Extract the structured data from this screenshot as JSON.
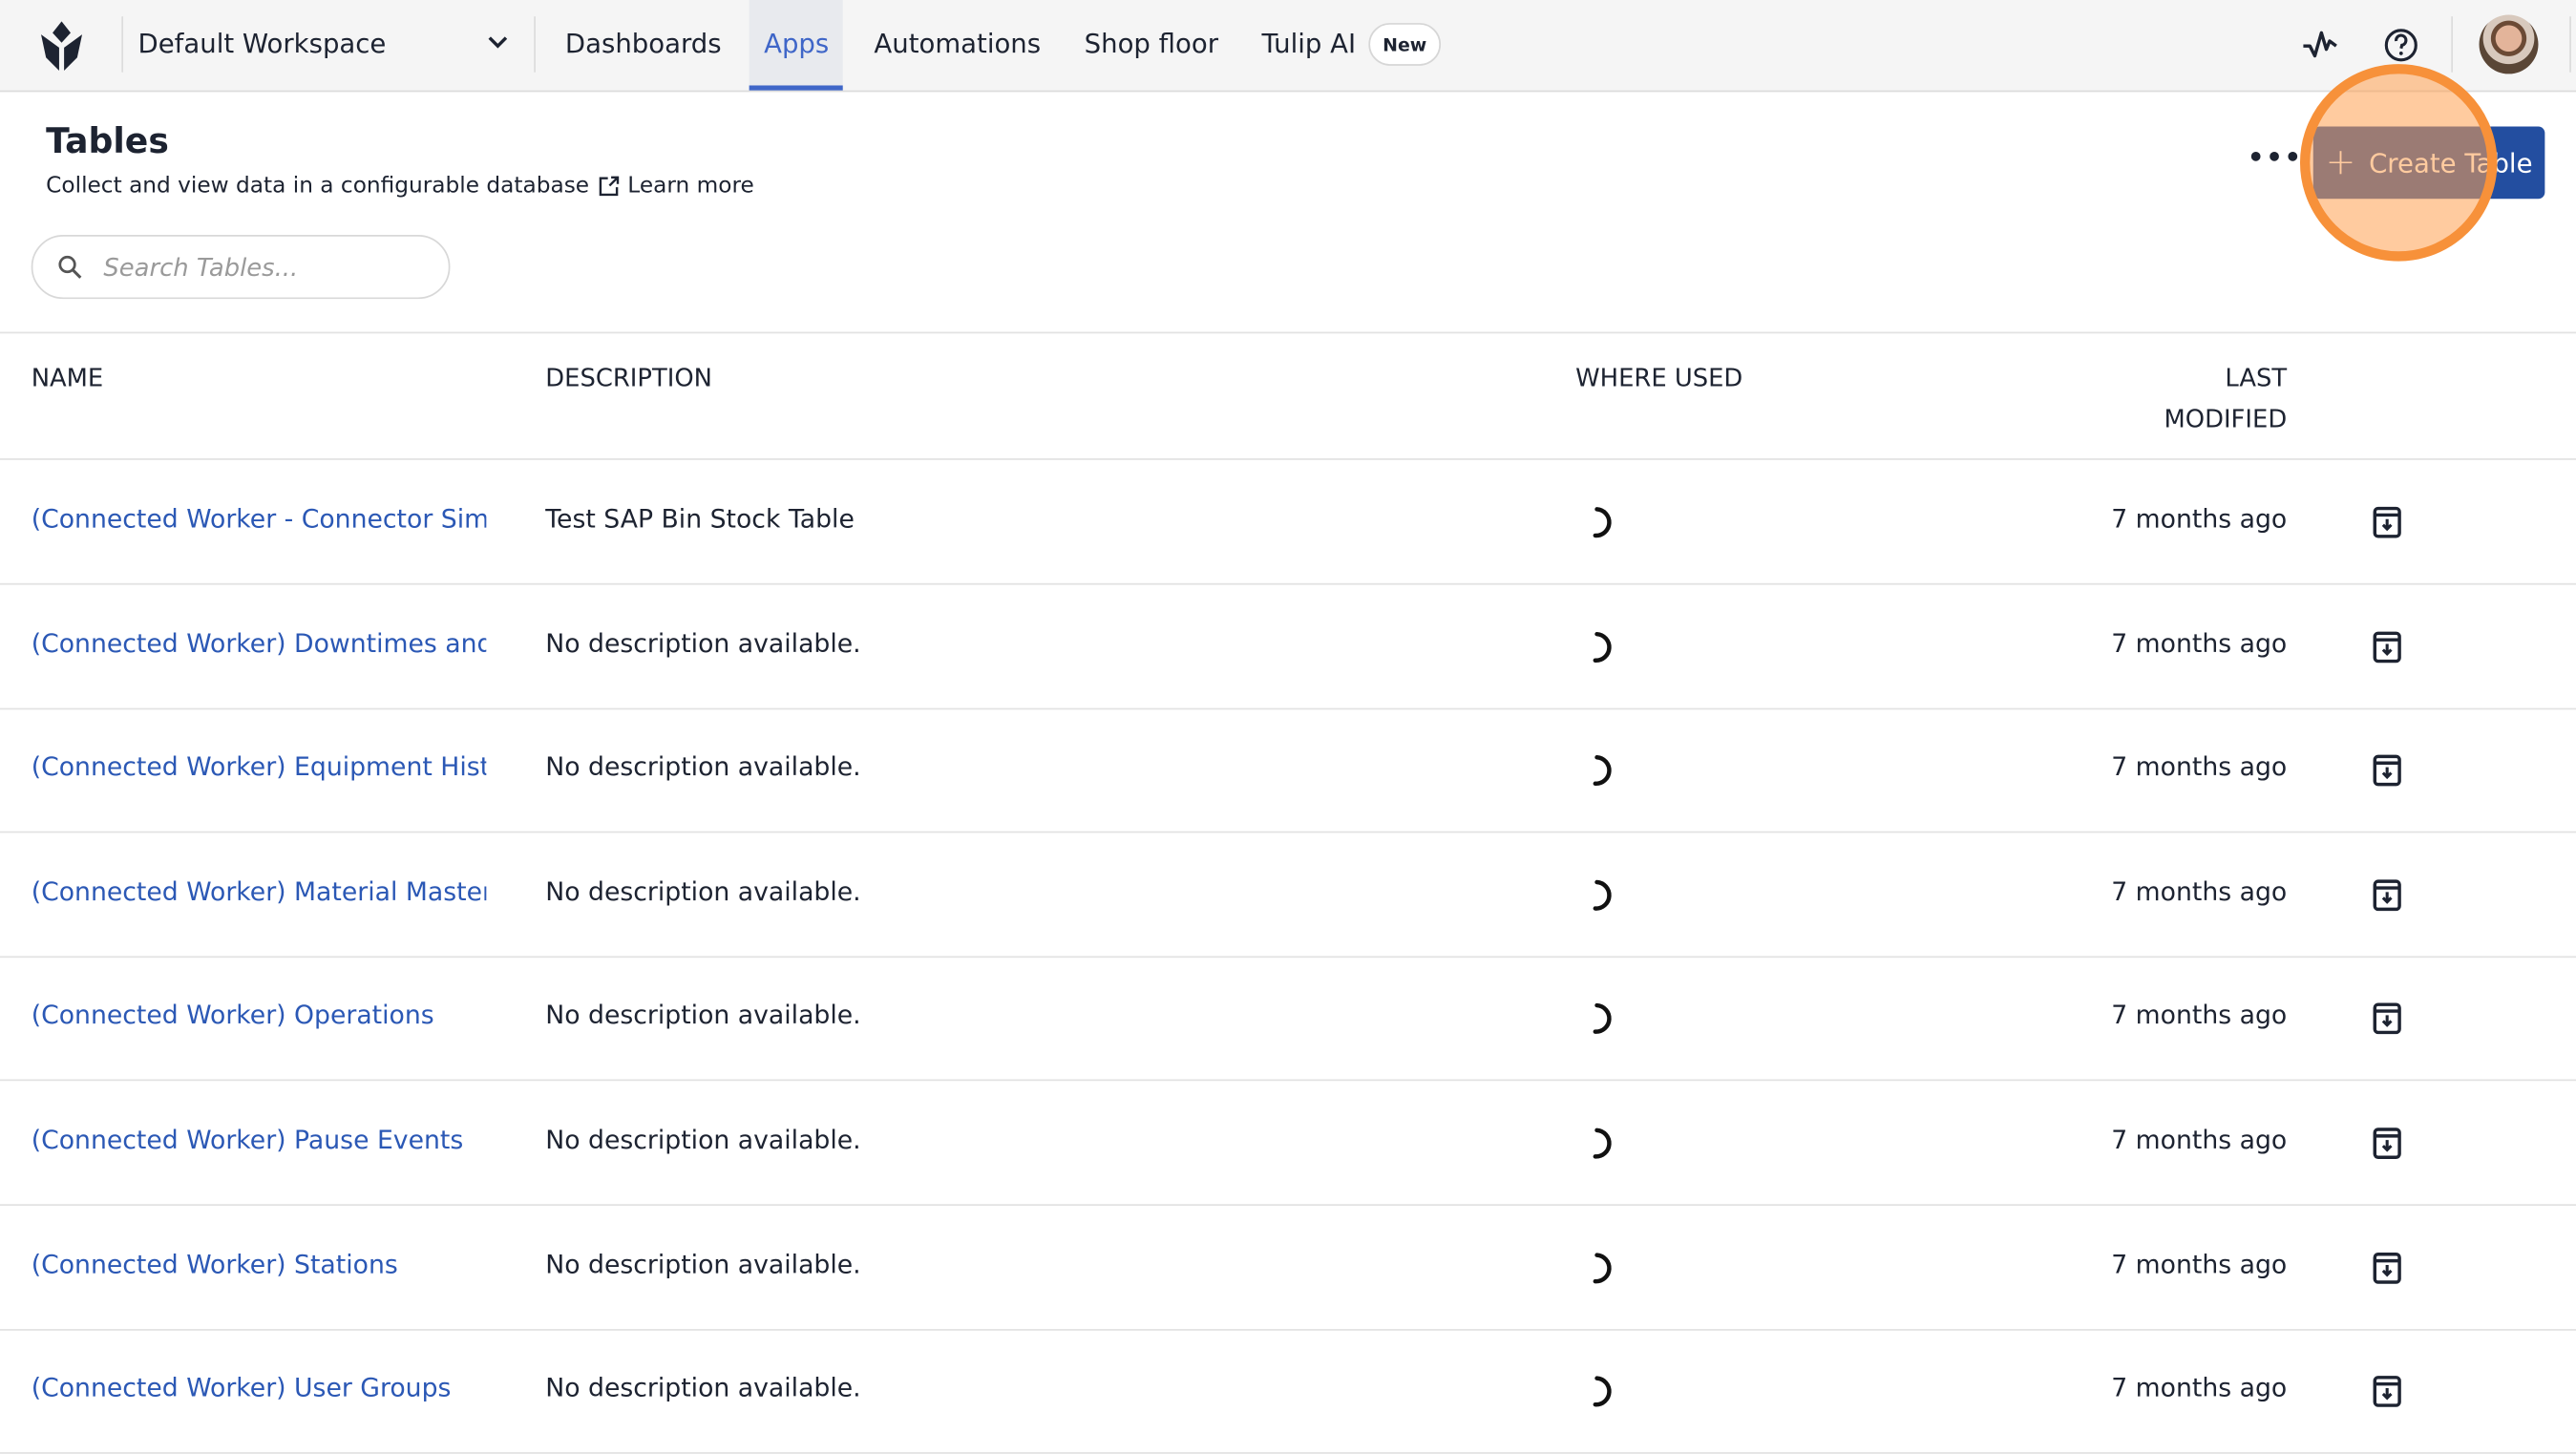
{
  "nav": {
    "workspace": "Default Workspace",
    "items": [
      "Dashboards",
      "Apps",
      "Automations",
      "Shop floor",
      "Tulip AI"
    ],
    "active": "Apps",
    "new_badge": "New"
  },
  "page": {
    "title": "Tables",
    "subtitle": "Collect and view data in a configurable database",
    "learn_more": "Learn more",
    "search_placeholder": "Search Tables...",
    "create_label": "Create Table"
  },
  "table": {
    "headers": {
      "name": "NAME",
      "description": "DESCRIPTION",
      "where_used": "WHERE USED",
      "last_modified_1": "LAST",
      "last_modified_2": "MODIFIED"
    },
    "rows": [
      {
        "name": "(Connected Worker - Connector Simulator",
        "description": "Test SAP Bin Stock Table",
        "modified": "7 months ago"
      },
      {
        "name": "(Connected Worker) Downtimes and Reasons",
        "description": "No description available.",
        "modified": "7 months ago"
      },
      {
        "name": "(Connected Worker) Equipment History",
        "description": "No description available.",
        "modified": "7 months ago"
      },
      {
        "name": "(Connected Worker) Material Master",
        "description": "No description available.",
        "modified": "7 months ago"
      },
      {
        "name": "(Connected Worker) Operations",
        "description": "No description available.",
        "modified": "7 months ago"
      },
      {
        "name": "(Connected Worker) Pause Events",
        "description": "No description available.",
        "modified": "7 months ago"
      },
      {
        "name": "(Connected Worker) Stations",
        "description": "No description available.",
        "modified": "7 months ago"
      },
      {
        "name": "(Connected Worker) User Groups",
        "description": "No description available.",
        "modified": "7 months ago"
      }
    ]
  },
  "colors": {
    "accent": "#234ea0",
    "link": "#2b58b5",
    "highlight": "#f7913a"
  }
}
